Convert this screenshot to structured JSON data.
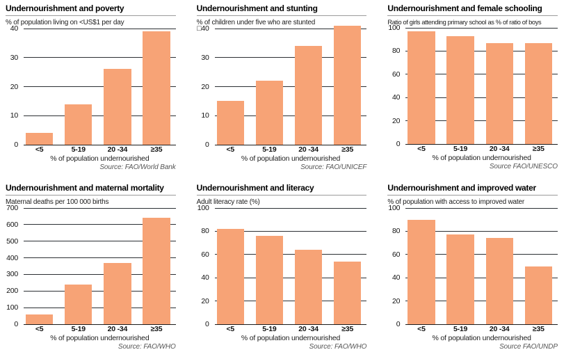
{
  "colors": {
    "bar": "#f7a376",
    "grid": "#2b2f33",
    "baseline": "#1b1b1b",
    "title_rule": "#9a9a9a",
    "source": "#555555",
    "text": "#141414"
  },
  "chart_data": [
    {
      "type": "bar",
      "title": "Undernourishment and poverty",
      "ylabel": "% of population living on <US$1 per day",
      "xlabel": "% of population undernourished",
      "source": "Source: FAO/World Bank",
      "categories": [
        "<5",
        "5-19",
        "20 -34",
        "≥35"
      ],
      "values": [
        4,
        14,
        26,
        39
      ],
      "ylim": [
        0,
        40
      ],
      "yticks": [
        40,
        30,
        20,
        10,
        0
      ],
      "grid": true,
      "legend": "none"
    },
    {
      "type": "bar",
      "title": "Undernourishment and stunting",
      "ylabel": "% of children under five who are stunted",
      "xlabel": "% of population undernourished",
      "source": "Source: FAO/UNICEF",
      "categories": [
        "<5",
        "5-19",
        "20 -34",
        "≥35"
      ],
      "values": [
        15,
        22,
        34,
        41
      ],
      "ylim": [
        0,
        40
      ],
      "yticks": [
        40,
        30,
        20,
        10,
        0
      ],
      "ytop_prefix": "□",
      "grid": true,
      "legend": "none"
    },
    {
      "type": "bar",
      "title": "Undernourishment and female schooling",
      "ylabel": "Ratio of girls attending primary school as % of ratio of boys",
      "xlabel": "% of population undernourished",
      "source": "Source FAO/UNESCO",
      "categories": [
        "<5",
        "5-19",
        "20 -34",
        "≥35"
      ],
      "values": [
        97,
        93,
        87,
        87
      ],
      "ylim": [
        0,
        100
      ],
      "yticks": [
        100,
        80,
        60,
        40,
        20,
        0
      ],
      "grid": true,
      "legend": "none"
    },
    {
      "type": "bar",
      "title": "Undernourishment and maternal mortality",
      "ylabel": "Maternal deaths per 100 000 births",
      "xlabel": "% of population undernourished",
      "source": "Source: FAO/WHO",
      "categories": [
        "<5",
        "5-19",
        "20 -34",
        "≥35"
      ],
      "values": [
        60,
        240,
        370,
        640
      ],
      "ylim": [
        0,
        700
      ],
      "yticks": [
        700,
        600,
        500,
        400,
        300,
        200,
        100,
        0
      ],
      "grid": true,
      "legend": "none"
    },
    {
      "type": "bar",
      "title": "Undernourishment and literacy",
      "ylabel": "Adult literacy rate (%)",
      "xlabel": "% of population undernourished",
      "source": "Source: FAO/WHO",
      "categories": [
        "<5",
        "5-19",
        "20 -34",
        "≥35"
      ],
      "values": [
        82,
        76,
        64,
        54
      ],
      "ylim": [
        0,
        100
      ],
      "yticks": [
        100,
        80,
        60,
        40,
        20,
        0
      ],
      "grid": true,
      "legend": "none"
    },
    {
      "type": "bar",
      "title": "Undernourishment and improved water",
      "ylabel": "% of population with access to improved water",
      "xlabel": "% of population undernourished",
      "source": "Source FAO/UNDP",
      "categories": [
        "<5",
        "5-19",
        "20 -34",
        "≥35"
      ],
      "values": [
        90,
        77,
        74,
        50
      ],
      "ylim": [
        0,
        100
      ],
      "yticks": [
        100,
        80,
        60,
        40,
        20,
        0
      ],
      "grid": true,
      "legend": "none"
    }
  ]
}
